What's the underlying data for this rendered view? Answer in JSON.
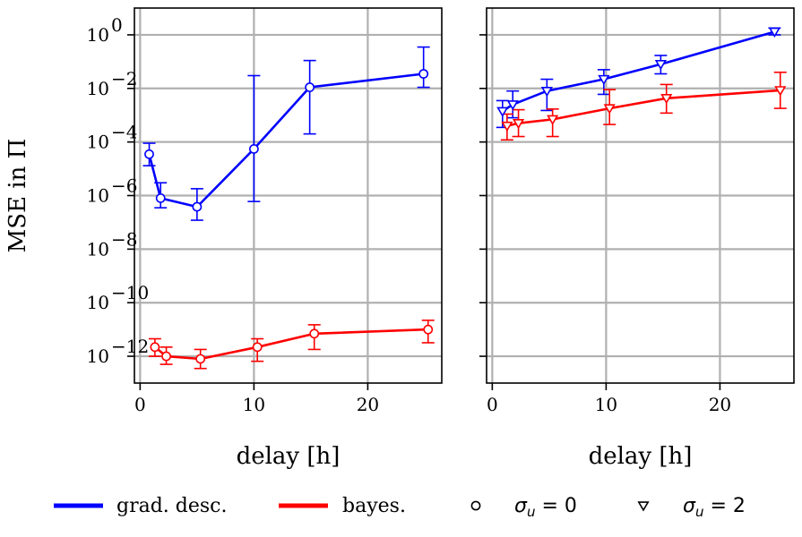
{
  "chart_data": [
    {
      "type": "line",
      "panel": "left",
      "xlabel": "delay [h]",
      "ylabel": "MSE in Π",
      "xlim": [
        -0.5,
        26.5
      ],
      "ylim": [
        1e-13,
        10
      ],
      "yscale": "log",
      "grid": true,
      "xticks": [
        0,
        10,
        20
      ],
      "yticks": [
        {
          "value": 1,
          "base": "10",
          "exp": "0"
        },
        {
          "value": 0.01,
          "base": "10",
          "exp": "−2"
        },
        {
          "value": 0.0001,
          "base": "10",
          "exp": "−4"
        },
        {
          "value": 1e-06,
          "base": "10",
          "exp": "−6"
        },
        {
          "value": 1e-08,
          "base": "10",
          "exp": "−8"
        },
        {
          "value": 1e-10,
          "base": "10",
          "exp": "−10"
        },
        {
          "value": 1e-12,
          "base": "10",
          "exp": "−12"
        }
      ],
      "series": [
        {
          "name": "grad. desc.",
          "color": "#0000ff",
          "marker": "circle",
          "points": [
            {
              "x": 0.8,
              "y": 3.5e-05,
              "lo": 1.3e-05,
              "hi": 9e-05
            },
            {
              "x": 1.8,
              "y": 8e-07,
              "lo": 3.5e-07,
              "hi": 3e-06
            },
            {
              "x": 5.0,
              "y": 3.8e-07,
              "lo": 1.2e-07,
              "hi": 1.8e-06
            },
            {
              "x": 10.0,
              "y": 5.5e-05,
              "lo": 6e-07,
              "hi": 0.03
            },
            {
              "x": 14.9,
              "y": 0.011,
              "lo": 0.0002,
              "hi": 0.11
            },
            {
              "x": 24.9,
              "y": 0.035,
              "lo": 0.011,
              "hi": 0.35
            }
          ]
        },
        {
          "name": "bayes.",
          "color": "#ff0000",
          "marker": "circle",
          "points": [
            {
              "x": 1.3,
              "y": 2.2e-12,
              "lo": 1e-12,
              "hi": 4.5e-12
            },
            {
              "x": 2.3,
              "y": 1e-12,
              "lo": 5e-13,
              "hi": 2.2e-12
            },
            {
              "x": 5.3,
              "y": 8e-13,
              "lo": 3.5e-13,
              "hi": 1.8e-12
            },
            {
              "x": 10.3,
              "y": 2.2e-12,
              "lo": 6.5e-13,
              "hi": 4.5e-12
            },
            {
              "x": 15.3,
              "y": 7e-12,
              "lo": 1.8e-12,
              "hi": 1.5e-11
            },
            {
              "x": 25.3,
              "y": 1e-11,
              "lo": 3.2e-12,
              "hi": 2.2e-11
            }
          ]
        }
      ]
    },
    {
      "type": "line",
      "panel": "right",
      "xlabel": "delay [h]",
      "ylabel": "",
      "xlim": [
        -0.5,
        26.5
      ],
      "ylim": [
        1e-13,
        10
      ],
      "yscale": "log",
      "grid": true,
      "xticks": [
        0,
        10,
        20
      ],
      "series": [
        {
          "name": "grad. desc.",
          "color": "#0000ff",
          "marker": "triangle-down",
          "points": [
            {
              "x": 0.9,
              "y": 0.0014,
              "lo": 0.00035,
              "hi": 0.0035
            },
            {
              "x": 1.8,
              "y": 0.0025,
              "lo": 0.0008,
              "hi": 0.008
            },
            {
              "x": 4.8,
              "y": 0.008,
              "lo": 0.0015,
              "hi": 0.022
            },
            {
              "x": 9.8,
              "y": 0.022,
              "lo": 0.006,
              "hi": 0.05
            },
            {
              "x": 14.8,
              "y": 0.08,
              "lo": 0.035,
              "hi": 0.17
            },
            {
              "x": 24.8,
              "y": 1.3,
              "lo": 1.0,
              "hi": 1.8
            }
          ]
        },
        {
          "name": "bayes.",
          "color": "#ff0000",
          "marker": "triangle-down",
          "points": [
            {
              "x": 1.3,
              "y": 0.0004,
              "lo": 0.00012,
              "hi": 0.0011
            },
            {
              "x": 2.3,
              "y": 0.0005,
              "lo": 0.00016,
              "hi": 0.0016
            },
            {
              "x": 5.3,
              "y": 0.0007,
              "lo": 0.00016,
              "hi": 0.0017
            },
            {
              "x": 10.3,
              "y": 0.0018,
              "lo": 0.00045,
              "hi": 0.009
            },
            {
              "x": 15.3,
              "y": 0.0043,
              "lo": 0.0012,
              "hi": 0.014
            },
            {
              "x": 25.3,
              "y": 0.0085,
              "lo": 0.0018,
              "hi": 0.04
            }
          ]
        }
      ]
    }
  ],
  "legend": {
    "placement": "bottom",
    "entries": [
      {
        "kind": "line",
        "label": "grad. desc.",
        "color": "#0000ff"
      },
      {
        "kind": "line",
        "label": "bayes.",
        "color": "#ff0000"
      },
      {
        "kind": "marker",
        "marker": "circle",
        "symbol": "σ",
        "sub": "u",
        "rest": " = 0"
      },
      {
        "kind": "marker",
        "marker": "triangle-down",
        "symbol": "σ",
        "sub": "u",
        "rest": " = 2"
      }
    ]
  }
}
